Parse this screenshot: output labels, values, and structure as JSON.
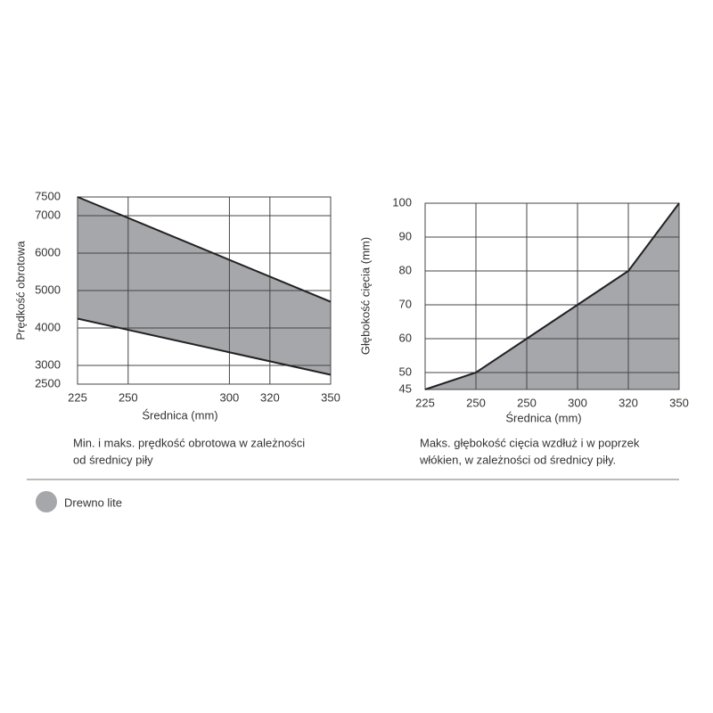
{
  "chart_data": [
    {
      "type": "band",
      "ylabel": "Prędkość obrotowa",
      "xlabel": "Średnica (mm)",
      "caption": [
        "Min. i maks. prędkość obrotowa w zależności",
        "od średnicy piły"
      ],
      "x": [
        225,
        350
      ],
      "series": [
        {
          "color": "#a6a7ab",
          "values": [
            4250,
            2750
          ]
        },
        {
          "color": "#a6a7ab",
          "values": [
            7500,
            4700
          ]
        }
      ],
      "xlim": [
        225,
        350
      ],
      "xticks": [
        225,
        250,
        300,
        320,
        350
      ],
      "ylim": [
        2500,
        7500
      ],
      "yticks": [
        2500,
        3000,
        4000,
        5000,
        6000,
        7000,
        7500
      ],
      "grid": true
    },
    {
      "type": "area",
      "ylabel": "Głębokość cięcia (mm)",
      "xlabel": "Średnica (mm)",
      "caption": [
        "Maks. głębokość cięcia wzdłuż i w poprzek",
        "włókien, w zależności od średnicy piły."
      ],
      "categories": [
        "225",
        "250",
        "250",
        "300",
        "320",
        "350"
      ],
      "values": [
        45,
        50,
        60,
        70,
        80,
        100
      ],
      "color": "#a6a7ab",
      "ylim": [
        45,
        100
      ],
      "yticks": [
        45,
        50,
        60,
        70,
        80,
        90,
        100
      ],
      "grid": true
    }
  ],
  "legend": {
    "label": "Drewno lite",
    "color": "#a6a7ab"
  }
}
